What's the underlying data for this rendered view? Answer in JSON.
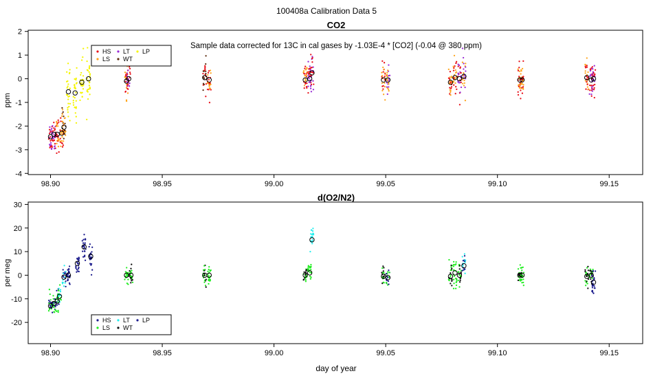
{
  "page_title": "100408a   Calibration Data 5",
  "xlabel": "day of year",
  "marker_colors": {
    "HS": "#e8121b",
    "LS": "#ffa51c",
    "LT": "#9a2bd6",
    "WT": "#5c2b0f",
    "LP": "#f5f500",
    "LS_o2": "#22ee22",
    "LT_o2": "#22eeee",
    "WT_o2": "#111111",
    "LP_o2": "#1a1a8c"
  },
  "chart_data": [
    {
      "type": "scatter",
      "title": "CO2",
      "ylabel": "ppm",
      "annotation": "Sample data corrected for 13C in cal gases by -1.03E-4 * [CO2] (-0.04 @ 380 ppm)",
      "xlim": [
        98.89,
        99.165
      ],
      "ylim": [
        -4.05,
        2.05
      ],
      "xticks": [
        98.9,
        98.95,
        99.0,
        99.05,
        99.1,
        99.15
      ],
      "xtick_labels": [
        "98.90",
        "98.95",
        "99.00",
        "99.05",
        "99.10",
        "99.15"
      ],
      "yticks": [
        -4,
        -3,
        -2,
        -1,
        0,
        1,
        2
      ],
      "ytick_labels": [
        "-4",
        "-3",
        "-2",
        "-1",
        "0",
        "1",
        "2"
      ],
      "legend": {
        "entries": [
          {
            "label": "HS",
            "color": "#e8121b"
          },
          {
            "label": "LS",
            "color": "#ffa51c"
          },
          {
            "label": "LT",
            "color": "#9a2bd6"
          },
          {
            "label": "WT",
            "color": "#5c2b0f"
          },
          {
            "label": "LP",
            "color": "#f5f500"
          }
        ]
      },
      "clusters": [
        {
          "x": 98.9,
          "y": -2.45,
          "spread": 0.6,
          "series": [
            "LT",
            "HS"
          ]
        },
        {
          "x": 98.9015,
          "y": -2.35,
          "spread": 0.6,
          "series": [
            "LT",
            "HS"
          ]
        },
        {
          "x": 98.903,
          "y": -2.35,
          "spread": 0.6,
          "series": [
            "HS",
            "LS"
          ]
        },
        {
          "x": 98.905,
          "y": -2.3,
          "spread": 0.7,
          "series": [
            "LS",
            "HS"
          ]
        },
        {
          "x": 98.906,
          "y": -2.05,
          "spread": 0.7,
          "series": [
            "LS",
            "WT"
          ]
        },
        {
          "x": 98.908,
          "y": -0.55,
          "spread": 1.0,
          "series": [
            "LP"
          ]
        },
        {
          "x": 98.911,
          "y": -0.6,
          "spread": 1.0,
          "series": [
            "LP"
          ]
        },
        {
          "x": 98.914,
          "y": -0.15,
          "spread": 0.9,
          "series": [
            "LP"
          ]
        },
        {
          "x": 98.917,
          "y": 0.0,
          "spread": 0.9,
          "series": [
            "LP"
          ]
        },
        {
          "x": 98.934,
          "y": -0.1,
          "spread": 0.6,
          "series": [
            "LS",
            "HS"
          ]
        },
        {
          "x": 98.935,
          "y": 0.0,
          "spread": 0.6,
          "series": [
            "HS",
            "LT"
          ]
        },
        {
          "x": 98.969,
          "y": 0.05,
          "spread": 0.6,
          "series": [
            "HS",
            "WT"
          ]
        },
        {
          "x": 98.971,
          "y": -0.05,
          "spread": 0.6,
          "series": [
            "LS",
            "HS"
          ]
        },
        {
          "x": 99.014,
          "y": -0.05,
          "spread": 0.6,
          "series": [
            "LS",
            "HS"
          ]
        },
        {
          "x": 99.016,
          "y": 0.0,
          "spread": 0.6,
          "series": [
            "HS",
            "LT"
          ]
        },
        {
          "x": 99.017,
          "y": 0.25,
          "spread": 0.6,
          "series": [
            "LT",
            "HS"
          ]
        },
        {
          "x": 99.049,
          "y": -0.05,
          "spread": 0.6,
          "series": [
            "HS",
            "LS"
          ]
        },
        {
          "x": 99.051,
          "y": -0.05,
          "spread": 0.6,
          "series": [
            "LT",
            "LS"
          ]
        },
        {
          "x": 99.079,
          "y": -0.15,
          "spread": 0.8,
          "series": [
            "LS",
            "HS"
          ]
        },
        {
          "x": 99.081,
          "y": 0.05,
          "spread": 0.8,
          "series": [
            "HS",
            "LS"
          ]
        },
        {
          "x": 99.083,
          "y": 0.0,
          "spread": 0.7,
          "series": [
            "HS",
            "LT"
          ]
        },
        {
          "x": 99.085,
          "y": 0.1,
          "spread": 0.7,
          "series": [
            "LT",
            "LS"
          ]
        },
        {
          "x": 99.11,
          "y": -0.05,
          "spread": 0.6,
          "series": [
            "HS",
            "LS"
          ]
        },
        {
          "x": 99.111,
          "y": -0.05,
          "spread": 0.6,
          "series": [
            "LS",
            "HS"
          ]
        },
        {
          "x": 99.14,
          "y": 0.05,
          "spread": 0.6,
          "series": [
            "LS",
            "HS"
          ]
        },
        {
          "x": 99.142,
          "y": -0.05,
          "spread": 0.6,
          "series": [
            "LT",
            "HS"
          ]
        },
        {
          "x": 99.143,
          "y": 0.0,
          "spread": 0.6,
          "series": [
            "LT",
            "HS"
          ]
        }
      ]
    },
    {
      "type": "scatter",
      "title": "d(O2/N2)",
      "ylabel": "per meg",
      "xlabel": "day of year",
      "xlim": [
        98.89,
        99.165
      ],
      "ylim": [
        -29,
        31
      ],
      "xticks": [
        98.9,
        98.95,
        99.0,
        99.05,
        99.1,
        99.15
      ],
      "xtick_labels": [
        "98.90",
        "98.95",
        "99.00",
        "99.05",
        "99.10",
        "99.15"
      ],
      "yticks": [
        -20,
        -10,
        0,
        10,
        20,
        30
      ],
      "ytick_labels": [
        "-20",
        "-10",
        "0",
        "10",
        "20",
        "30"
      ],
      "legend": {
        "entries": [
          {
            "label": "HS",
            "color": "#1a1a8c"
          },
          {
            "label": "LS",
            "color": "#22ee22"
          },
          {
            "label": "LT",
            "color": "#22eeee"
          },
          {
            "label": "WT",
            "color": "#111111"
          },
          {
            "label": "LP",
            "color": "#1a1a8c"
          }
        ]
      },
      "clusters": [
        {
          "x": 98.9,
          "y": -13,
          "spread": 4.0,
          "series": [
            "LP_o2",
            "LS_o2"
          ]
        },
        {
          "x": 98.9015,
          "y": -12,
          "spread": 4.0,
          "series": [
            "LP_o2",
            "LS_o2"
          ]
        },
        {
          "x": 98.903,
          "y": -11,
          "spread": 4.0,
          "series": [
            "LS_o2",
            "LP_o2"
          ]
        },
        {
          "x": 98.904,
          "y": -9,
          "spread": 4.0,
          "series": [
            "LS_o2",
            "LT_o2"
          ]
        },
        {
          "x": 98.906,
          "y": -0.8,
          "spread": 3.5,
          "series": [
            "LT_o2",
            "LP_o2"
          ]
        },
        {
          "x": 98.908,
          "y": 0,
          "spread": 4.0,
          "series": [
            "LP_o2"
          ]
        },
        {
          "x": 98.912,
          "y": 5,
          "spread": 5.0,
          "series": [
            "LP_o2"
          ]
        },
        {
          "x": 98.915,
          "y": 12,
          "spread": 6.0,
          "series": [
            "LP_o2"
          ]
        },
        {
          "x": 98.918,
          "y": 8,
          "spread": 5.0,
          "series": [
            "LP_o2"
          ]
        },
        {
          "x": 98.934,
          "y": 0,
          "spread": 3.5,
          "series": [
            "LS_o2"
          ]
        },
        {
          "x": 98.936,
          "y": 0,
          "spread": 3.5,
          "series": [
            "LS_o2",
            "WT_o2"
          ]
        },
        {
          "x": 98.969,
          "y": 0,
          "spread": 3.5,
          "series": [
            "LS_o2",
            "WT_o2"
          ]
        },
        {
          "x": 98.971,
          "y": 0,
          "spread": 3.5,
          "series": [
            "LS_o2"
          ]
        },
        {
          "x": 99.014,
          "y": 0,
          "spread": 3.5,
          "series": [
            "LS_o2",
            "WT_o2"
          ]
        },
        {
          "x": 99.016,
          "y": 1,
          "spread": 3.5,
          "series": [
            "LS_o2"
          ]
        },
        {
          "x": 99.017,
          "y": 15,
          "spread": 5.0,
          "series": [
            "LT_o2"
          ]
        },
        {
          "x": 99.049,
          "y": -0.5,
          "spread": 3.5,
          "series": [
            "LS_o2",
            "WT_o2"
          ]
        },
        {
          "x": 99.051,
          "y": -1,
          "spread": 3.5,
          "series": [
            "LP_o2",
            "LS_o2"
          ]
        },
        {
          "x": 99.079,
          "y": -0.5,
          "spread": 6.0,
          "series": [
            "LS_o2",
            "WT_o2"
          ]
        },
        {
          "x": 99.081,
          "y": 1,
          "spread": 6.0,
          "series": [
            "LS_o2"
          ]
        },
        {
          "x": 99.083,
          "y": 0,
          "spread": 5.0,
          "series": [
            "LS_o2",
            "WT_o2"
          ]
        },
        {
          "x": 99.085,
          "y": 4,
          "spread": 4.0,
          "series": [
            "LT_o2",
            "LP_o2"
          ]
        },
        {
          "x": 99.11,
          "y": 0,
          "spread": 3.5,
          "series": [
            "LS_o2",
            "WT_o2"
          ]
        },
        {
          "x": 99.111,
          "y": 0,
          "spread": 3.5,
          "series": [
            "LS_o2"
          ]
        },
        {
          "x": 99.14,
          "y": -0.5,
          "spread": 3.5,
          "series": [
            "LS_o2",
            "WT_o2"
          ]
        },
        {
          "x": 99.142,
          "y": 0,
          "spread": 3.5,
          "series": [
            "LS_o2",
            "WT_o2"
          ]
        },
        {
          "x": 99.143,
          "y": -3,
          "spread": 4.0,
          "series": [
            "LP_o2"
          ]
        }
      ]
    }
  ]
}
